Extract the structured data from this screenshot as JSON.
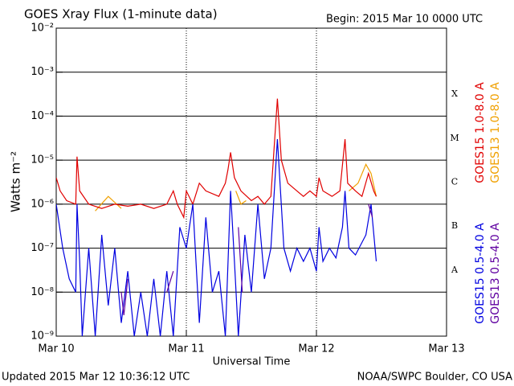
{
  "chart_data": {
    "type": "line",
    "title": "GOES Xray Flux (1-minute data)",
    "subtitle": "Begin:  2015 Mar 10 0000 UTC",
    "xlabel": "Universal Time",
    "ylabel": "Watts m⁻²",
    "footer_left": "Updated 2015 Mar 12 10:36:12 UTC",
    "footer_right": "NOAA/SWPC Boulder, CO USA",
    "log_y": true,
    "grid": true,
    "xlim": [
      0,
      3
    ],
    "xticks": [
      {
        "value": 0,
        "label": "Mar 10"
      },
      {
        "value": 1,
        "label": "Mar 11"
      },
      {
        "value": 2,
        "label": "Mar 12"
      },
      {
        "value": 3,
        "label": "Mar 13"
      }
    ],
    "ylim": [
      1e-09,
      0.01
    ],
    "yticks": [
      {
        "value": 1e-09,
        "label": "10⁻⁹"
      },
      {
        "value": 1e-08,
        "label": "10⁻⁸"
      },
      {
        "value": 1e-07,
        "label": "10⁻⁷"
      },
      {
        "value": 1e-06,
        "label": "10⁻⁶"
      },
      {
        "value": 1e-05,
        "label": "10⁻⁵"
      },
      {
        "value": 0.0001,
        "label": "10⁻⁴"
      },
      {
        "value": 0.001,
        "label": "10⁻³"
      },
      {
        "value": 0.01,
        "label": "10⁻²"
      }
    ],
    "class_labels": [
      "A",
      "B",
      "C",
      "M",
      "X"
    ],
    "series": [
      {
        "name": "GOES13 1.0-8.0 A",
        "color": "#f0a000",
        "x": [
          0.3,
          0.4,
          0.5,
          null,
          1.38,
          1.42,
          1.46,
          null,
          2.25,
          2.32,
          2.38,
          2.42,
          2.46
        ],
        "values": [
          7e-07,
          1.5e-06,
          8e-07,
          null,
          2e-06,
          1e-06,
          1.2e-06,
          null,
          2e-06,
          3e-06,
          8e-06,
          5e-06,
          1.5e-06
        ]
      },
      {
        "name": "GOES15 1.0-8.0 A",
        "color": "#e00000",
        "x": [
          0,
          0.03,
          0.08,
          0.15,
          0.16,
          0.18,
          0.25,
          0.35,
          0.45,
          0.55,
          0.65,
          0.75,
          0.85,
          0.9,
          0.93,
          0.98,
          1.0,
          1.05,
          1.1,
          1.15,
          1.25,
          1.3,
          1.32,
          1.34,
          1.37,
          1.42,
          1.5,
          1.55,
          1.6,
          1.65,
          1.7,
          1.73,
          1.78,
          1.85,
          1.9,
          1.95,
          2.0,
          2.02,
          2.05,
          2.12,
          2.18,
          2.22,
          2.24,
          2.3,
          2.35,
          2.4,
          2.44,
          2.46
        ],
        "values": [
          4e-06,
          2e-06,
          1.2e-06,
          1e-06,
          1.2e-05,
          2e-06,
          1e-06,
          8e-07,
          1e-06,
          9e-07,
          1e-06,
          8e-07,
          1e-06,
          2e-06,
          1e-06,
          5e-07,
          2e-06,
          1e-06,
          3e-06,
          2e-06,
          1.5e-06,
          3e-06,
          6e-06,
          1.5e-05,
          4e-06,
          2e-06,
          1.2e-06,
          1.5e-06,
          1e-06,
          1.5e-06,
          0.00025,
          1e-05,
          3e-06,
          2e-06,
          1.5e-06,
          2e-06,
          1.5e-06,
          4e-06,
          2e-06,
          1.5e-06,
          2e-06,
          3e-05,
          3e-06,
          2e-06,
          1.5e-06,
          5e-06,
          2e-06,
          1.5e-06
        ]
      },
      {
        "name": "GOES15 0.5-4.0 A",
        "color": "#0000e0",
        "x": [
          0,
          0.05,
          0.1,
          0.15,
          0.16,
          0.18,
          0.2,
          0.25,
          0.3,
          0.35,
          0.4,
          0.45,
          0.5,
          0.55,
          0.6,
          0.65,
          0.7,
          0.75,
          0.8,
          0.85,
          0.9,
          0.95,
          1.0,
          1.05,
          1.1,
          1.15,
          1.2,
          1.25,
          1.3,
          1.34,
          1.37,
          1.4,
          1.45,
          1.5,
          1.55,
          1.6,
          1.65,
          1.7,
          1.75,
          1.8,
          1.85,
          1.9,
          1.95,
          2.0,
          2.02,
          2.05,
          2.1,
          2.15,
          2.2,
          2.22,
          2.25,
          2.3,
          2.38,
          2.42,
          2.46
        ],
        "values": [
          1e-06,
          1e-07,
          2e-08,
          1e-08,
          1e-06,
          5e-08,
          1e-09,
          1e-07,
          1e-09,
          2e-07,
          5e-09,
          1e-07,
          2e-09,
          3e-08,
          1e-09,
          1e-08,
          1e-09,
          2e-08,
          1e-09,
          3e-08,
          1e-09,
          3e-07,
          1e-07,
          1e-06,
          2e-09,
          5e-07,
          1e-08,
          3e-08,
          1e-09,
          2e-06,
          5e-08,
          1e-09,
          2e-07,
          1e-08,
          1e-06,
          2e-08,
          1e-07,
          3e-05,
          1e-07,
          3e-08,
          1e-07,
          5e-08,
          1e-07,
          3e-08,
          3e-07,
          5e-08,
          1e-07,
          6e-08,
          3e-07,
          2e-06,
          1e-07,
          7e-08,
          2e-07,
          1e-06,
          5e-08
        ]
      },
      {
        "name": "GOES13 0.5-4.0 A",
        "color": "#6000a0",
        "x": [
          0.5,
          0.52,
          0.55,
          null,
          0.85,
          0.9,
          null,
          1.4,
          1.43,
          null,
          2.4,
          2.43
        ],
        "values": [
          1e-08,
          3e-09,
          2e-08,
          null,
          1e-08,
          3e-08,
          null,
          3e-07,
          1e-08,
          null,
          1e-06,
          5e-07
        ]
      }
    ]
  }
}
